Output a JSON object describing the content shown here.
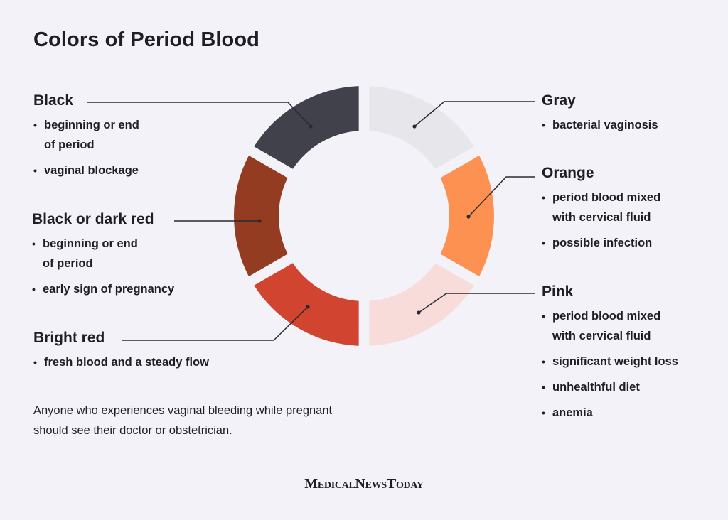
{
  "title": "Colors of Period Blood",
  "segments": [
    {
      "label": "Gray",
      "color": "#e6e6eb",
      "side": "right",
      "bullets": [
        [
          "bacterial vaginosis"
        ]
      ]
    },
    {
      "label": "Orange",
      "color": "#fd9152",
      "side": "right",
      "bullets": [
        [
          "period blood mixed",
          "with cervical fluid"
        ],
        [
          "possible infection"
        ]
      ]
    },
    {
      "label": "Pink",
      "color": "#f7dcd9",
      "side": "right",
      "bullets": [
        [
          "period blood mixed",
          "with cervical fluid"
        ],
        [
          "significant weight loss"
        ],
        [
          "unhealthful diet"
        ],
        [
          "anemia"
        ]
      ]
    },
    {
      "label": "Bright red",
      "color": "#d14530",
      "side": "left",
      "bullets": [
        [
          "fresh blood and a steady flow"
        ]
      ]
    },
    {
      "label": "Black or dark red",
      "color": "#933c22",
      "side": "left",
      "bullets": [
        [
          "beginning or end",
          "of period"
        ],
        [
          "early sign of pregnancy"
        ]
      ]
    },
    {
      "label": "Black",
      "color": "#41414c",
      "side": "left",
      "bullets": [
        [
          "beginning or end",
          "of period"
        ],
        [
          "vaginal blockage"
        ]
      ]
    }
  ],
  "note": {
    "line1": "Anyone who experiences vaginal bleeding while pregnant",
    "line2": "should see their doctor or obstetrician."
  },
  "brand": {
    "part1": "Medical",
    "part2": "News",
    "part3": "Today"
  }
}
